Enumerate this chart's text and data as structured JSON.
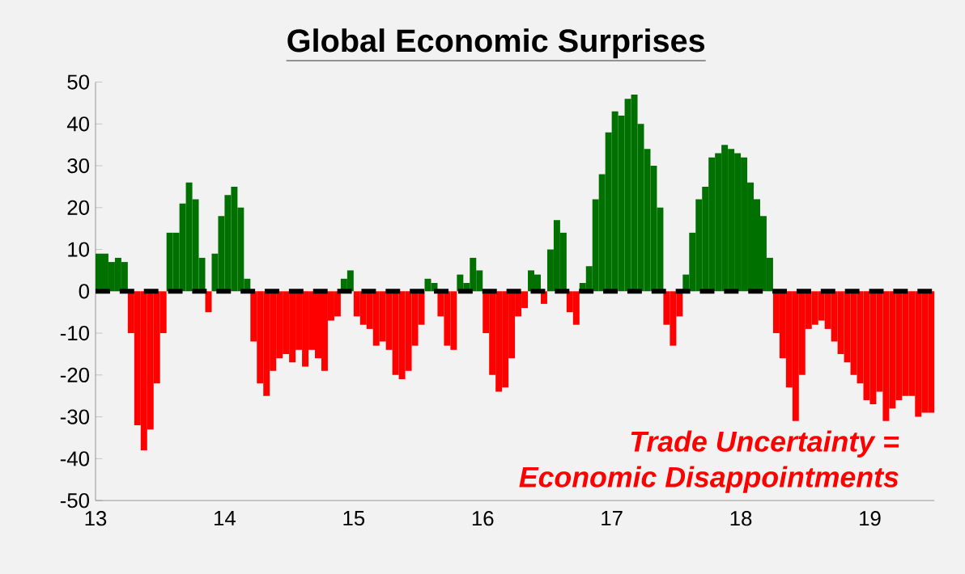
{
  "chart_data": {
    "type": "bar",
    "title": "Global Economic Surprises",
    "x": [
      13.0,
      13.05,
      13.1,
      13.15,
      13.2,
      13.25,
      13.3,
      13.35,
      13.4,
      13.45,
      13.5,
      13.55,
      13.6,
      13.65,
      13.7,
      13.75,
      13.8,
      13.85,
      13.9,
      13.95,
      14.0,
      14.05,
      14.1,
      14.15,
      14.2,
      14.25,
      14.3,
      14.35,
      14.4,
      14.45,
      14.5,
      14.55,
      14.6,
      14.65,
      14.7,
      14.75,
      14.8,
      14.85,
      14.9,
      14.95,
      15.0,
      15.05,
      15.1,
      15.15,
      15.2,
      15.25,
      15.3,
      15.35,
      15.4,
      15.45,
      15.5,
      15.55,
      15.6,
      15.65,
      15.7,
      15.75,
      15.8,
      15.85,
      15.9,
      15.95,
      16.0,
      16.05,
      16.1,
      16.15,
      16.2,
      16.25,
      16.3,
      16.35,
      16.4,
      16.45,
      16.5,
      16.55,
      16.6,
      16.65,
      16.7,
      16.75,
      16.8,
      16.85,
      16.9,
      16.95,
      17.0,
      17.05,
      17.1,
      17.15,
      17.2,
      17.25,
      17.3,
      17.35,
      17.4,
      17.45,
      17.5,
      17.55,
      17.6,
      17.65,
      17.7,
      17.75,
      17.8,
      17.85,
      17.9,
      17.95,
      18.0,
      18.05,
      18.1,
      18.15,
      18.2,
      18.25,
      18.3,
      18.35,
      18.4,
      18.45,
      18.5,
      18.55,
      18.6,
      18.65,
      18.7,
      18.75,
      18.8,
      18.85,
      18.9,
      18.95,
      19.0,
      19.05,
      19.1,
      19.15,
      19.2,
      19.25,
      19.3,
      19.35,
      19.4,
      19.45
    ],
    "values": [
      9,
      9,
      7,
      8,
      7,
      -10,
      -32,
      -38,
      -33,
      -22,
      -10,
      14,
      14,
      21,
      26,
      22,
      8,
      -5,
      9,
      18,
      23,
      25,
      20,
      3,
      -12,
      -22,
      -25,
      -19,
      -16,
      -15,
      -17,
      -14,
      -18,
      -14,
      -16,
      -19,
      -7,
      -6,
      3,
      5,
      -6,
      -8,
      -9,
      -13,
      -12,
      -14,
      -20,
      -21,
      -19,
      -13,
      -8,
      3,
      2,
      -6,
      -13,
      -14,
      4,
      2,
      8,
      5,
      -10,
      -20,
      -24,
      -23,
      -16,
      -6,
      -4,
      5,
      4,
      -3,
      10,
      17,
      14,
      -5,
      -8,
      2,
      6,
      22,
      28,
      38,
      43,
      42,
      46,
      47,
      40,
      34,
      30,
      20,
      -8,
      -13,
      -6,
      4,
      14,
      22,
      25,
      32,
      33,
      35,
      34,
      33,
      32,
      26,
      22,
      18,
      8,
      -10,
      -16,
      -23,
      -31,
      -20,
      -9,
      -8,
      -7,
      -9,
      -12,
      -15,
      -17,
      -20,
      -22,
      -26,
      -27,
      -24,
      -31,
      -28,
      -26,
      -25,
      -25,
      -30,
      -29,
      -29
    ],
    "colors": [
      "#007000",
      "#007000",
      "#007000",
      "#007000",
      "#007000",
      "#ff0000",
      "#ff0000",
      "#ff0000",
      "#ff0000",
      "#ff0000",
      "#ff0000",
      "#007000",
      "#007000",
      "#007000",
      "#007000",
      "#007000",
      "#007000",
      "#ff0000",
      "#007000",
      "#007000",
      "#007000",
      "#007000",
      "#007000",
      "#007000",
      "#ff0000",
      "#ff0000",
      "#ff0000",
      "#ff0000",
      "#ff0000",
      "#ff0000",
      "#ff0000",
      "#ff0000",
      "#ff0000",
      "#ff0000",
      "#ff0000",
      "#ff0000",
      "#ff0000",
      "#ff0000",
      "#007000",
      "#007000",
      "#ff0000",
      "#ff0000",
      "#ff0000",
      "#ff0000",
      "#ff0000",
      "#ff0000",
      "#ff0000",
      "#ff0000",
      "#ff0000",
      "#ff0000",
      "#ff0000",
      "#007000",
      "#007000",
      "#ff0000",
      "#ff0000",
      "#ff0000",
      "#007000",
      "#007000",
      "#007000",
      "#007000",
      "#ff0000",
      "#ff0000",
      "#ff0000",
      "#ff0000",
      "#ff0000",
      "#ff0000",
      "#ff0000",
      "#007000",
      "#007000",
      "#ff0000",
      "#007000",
      "#007000",
      "#007000",
      "#ff0000",
      "#ff0000",
      "#007000",
      "#007000",
      "#007000",
      "#007000",
      "#007000",
      "#007000",
      "#007000",
      "#007000",
      "#007000",
      "#007000",
      "#007000",
      "#007000",
      "#007000",
      "#ff0000",
      "#ff0000",
      "#ff0000",
      "#007000",
      "#007000",
      "#007000",
      "#007000",
      "#007000",
      "#007000",
      "#007000",
      "#007000",
      "#007000",
      "#007000",
      "#007000",
      "#007000",
      "#007000",
      "#007000",
      "#ff0000",
      "#ff0000",
      "#ff0000",
      "#ff0000",
      "#ff0000",
      "#ff0000",
      "#ff0000",
      "#ff0000",
      "#ff0000",
      "#ff0000",
      "#ff0000",
      "#ff0000",
      "#ff0000",
      "#ff0000",
      "#ff0000",
      "#ff0000",
      "#ff0000",
      "#ff0000",
      "#ff0000",
      "#ff0000",
      "#ff0000",
      "#ff0000",
      "#ff0000",
      "#ff0000",
      "#ff0000"
    ],
    "xlim": [
      13,
      19.5
    ],
    "xticks": [
      13,
      14,
      15,
      16,
      17,
      18,
      19
    ],
    "ylim": [
      -50,
      50
    ],
    "yticks": [
      -50,
      -40,
      -30,
      -20,
      -10,
      0,
      10,
      20,
      30,
      40,
      50
    ],
    "ref_lines": [
      {
        "axis": "y",
        "value": 0,
        "color": "#000000",
        "line_style": "dashed"
      }
    ],
    "annotations": [
      "Trade Uncertainty =",
      "Economic Disappointments"
    ]
  }
}
